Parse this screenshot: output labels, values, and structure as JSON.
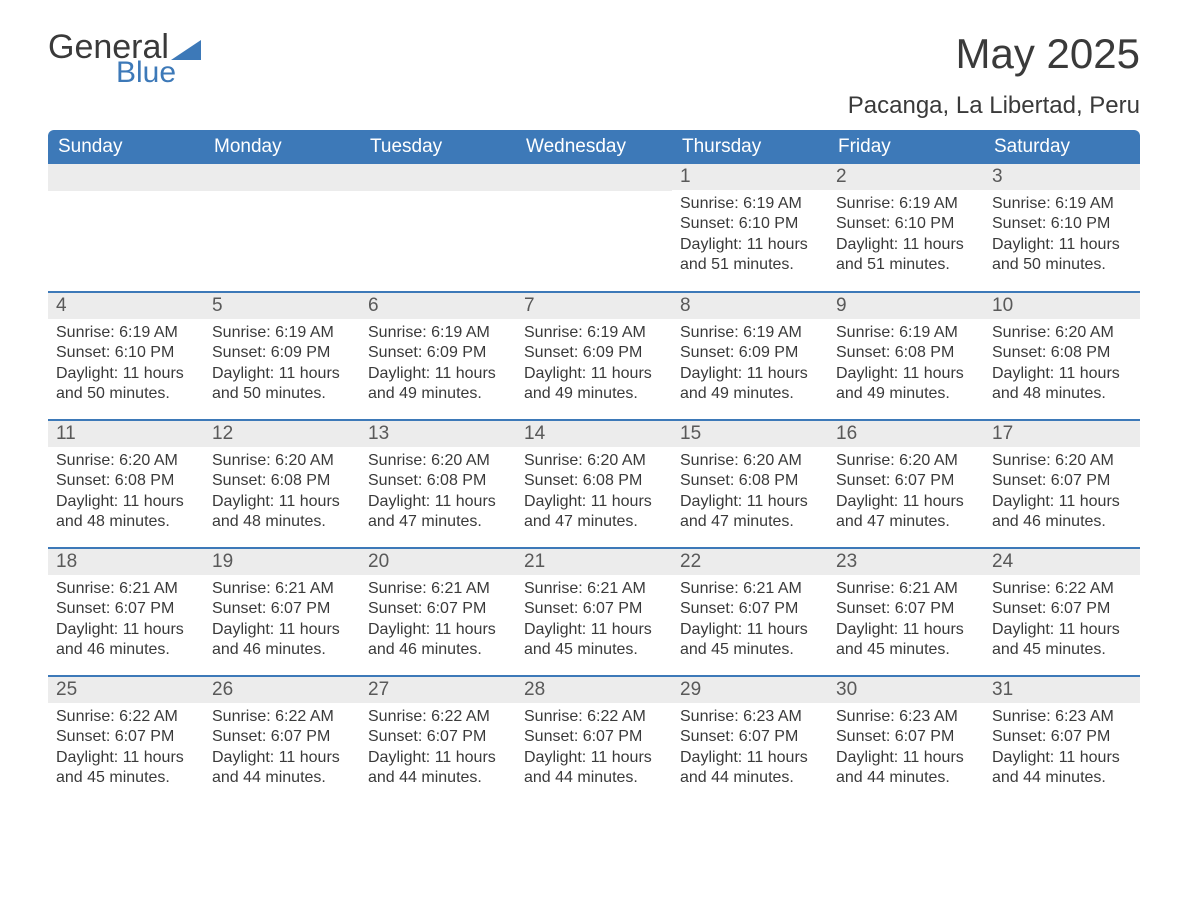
{
  "logo": {
    "text_general": "General",
    "text_blue": "Blue"
  },
  "header": {
    "title": "May 2025",
    "location": "Pacanga, La Libertad, Peru"
  },
  "colors": {
    "header_bg": "#3d79b8",
    "header_fg": "#ffffff",
    "daynum_bg": "#ececec",
    "daynum_fg": "#595959",
    "body_text": "#3a3a3a",
    "row_border": "#3d79b8",
    "logo_blue": "#3d79b8"
  },
  "weekdays": [
    "Sunday",
    "Monday",
    "Tuesday",
    "Wednesday",
    "Thursday",
    "Friday",
    "Saturday"
  ],
  "weeks": [
    [
      null,
      null,
      null,
      null,
      {
        "n": "1",
        "sunrise": "6:19 AM",
        "sunset": "6:10 PM",
        "dl1": "Daylight: 11 hours",
        "dl2": "and 51 minutes."
      },
      {
        "n": "2",
        "sunrise": "6:19 AM",
        "sunset": "6:10 PM",
        "dl1": "Daylight: 11 hours",
        "dl2": "and 51 minutes."
      },
      {
        "n": "3",
        "sunrise": "6:19 AM",
        "sunset": "6:10 PM",
        "dl1": "Daylight: 11 hours",
        "dl2": "and 50 minutes."
      }
    ],
    [
      {
        "n": "4",
        "sunrise": "6:19 AM",
        "sunset": "6:10 PM",
        "dl1": "Daylight: 11 hours",
        "dl2": "and 50 minutes."
      },
      {
        "n": "5",
        "sunrise": "6:19 AM",
        "sunset": "6:09 PM",
        "dl1": "Daylight: 11 hours",
        "dl2": "and 50 minutes."
      },
      {
        "n": "6",
        "sunrise": "6:19 AM",
        "sunset": "6:09 PM",
        "dl1": "Daylight: 11 hours",
        "dl2": "and 49 minutes."
      },
      {
        "n": "7",
        "sunrise": "6:19 AM",
        "sunset": "6:09 PM",
        "dl1": "Daylight: 11 hours",
        "dl2": "and 49 minutes."
      },
      {
        "n": "8",
        "sunrise": "6:19 AM",
        "sunset": "6:09 PM",
        "dl1": "Daylight: 11 hours",
        "dl2": "and 49 minutes."
      },
      {
        "n": "9",
        "sunrise": "6:19 AM",
        "sunset": "6:08 PM",
        "dl1": "Daylight: 11 hours",
        "dl2": "and 49 minutes."
      },
      {
        "n": "10",
        "sunrise": "6:20 AM",
        "sunset": "6:08 PM",
        "dl1": "Daylight: 11 hours",
        "dl2": "and 48 minutes."
      }
    ],
    [
      {
        "n": "11",
        "sunrise": "6:20 AM",
        "sunset": "6:08 PM",
        "dl1": "Daylight: 11 hours",
        "dl2": "and 48 minutes."
      },
      {
        "n": "12",
        "sunrise": "6:20 AM",
        "sunset": "6:08 PM",
        "dl1": "Daylight: 11 hours",
        "dl2": "and 48 minutes."
      },
      {
        "n": "13",
        "sunrise": "6:20 AM",
        "sunset": "6:08 PM",
        "dl1": "Daylight: 11 hours",
        "dl2": "and 47 minutes."
      },
      {
        "n": "14",
        "sunrise": "6:20 AM",
        "sunset": "6:08 PM",
        "dl1": "Daylight: 11 hours",
        "dl2": "and 47 minutes."
      },
      {
        "n": "15",
        "sunrise": "6:20 AM",
        "sunset": "6:08 PM",
        "dl1": "Daylight: 11 hours",
        "dl2": "and 47 minutes."
      },
      {
        "n": "16",
        "sunrise": "6:20 AM",
        "sunset": "6:07 PM",
        "dl1": "Daylight: 11 hours",
        "dl2": "and 47 minutes."
      },
      {
        "n": "17",
        "sunrise": "6:20 AM",
        "sunset": "6:07 PM",
        "dl1": "Daylight: 11 hours",
        "dl2": "and 46 minutes."
      }
    ],
    [
      {
        "n": "18",
        "sunrise": "6:21 AM",
        "sunset": "6:07 PM",
        "dl1": "Daylight: 11 hours",
        "dl2": "and 46 minutes."
      },
      {
        "n": "19",
        "sunrise": "6:21 AM",
        "sunset": "6:07 PM",
        "dl1": "Daylight: 11 hours",
        "dl2": "and 46 minutes."
      },
      {
        "n": "20",
        "sunrise": "6:21 AM",
        "sunset": "6:07 PM",
        "dl1": "Daylight: 11 hours",
        "dl2": "and 46 minutes."
      },
      {
        "n": "21",
        "sunrise": "6:21 AM",
        "sunset": "6:07 PM",
        "dl1": "Daylight: 11 hours",
        "dl2": "and 45 minutes."
      },
      {
        "n": "22",
        "sunrise": "6:21 AM",
        "sunset": "6:07 PM",
        "dl1": "Daylight: 11 hours",
        "dl2": "and 45 minutes."
      },
      {
        "n": "23",
        "sunrise": "6:21 AM",
        "sunset": "6:07 PM",
        "dl1": "Daylight: 11 hours",
        "dl2": "and 45 minutes."
      },
      {
        "n": "24",
        "sunrise": "6:22 AM",
        "sunset": "6:07 PM",
        "dl1": "Daylight: 11 hours",
        "dl2": "and 45 minutes."
      }
    ],
    [
      {
        "n": "25",
        "sunrise": "6:22 AM",
        "sunset": "6:07 PM",
        "dl1": "Daylight: 11 hours",
        "dl2": "and 45 minutes."
      },
      {
        "n": "26",
        "sunrise": "6:22 AM",
        "sunset": "6:07 PM",
        "dl1": "Daylight: 11 hours",
        "dl2": "and 44 minutes."
      },
      {
        "n": "27",
        "sunrise": "6:22 AM",
        "sunset": "6:07 PM",
        "dl1": "Daylight: 11 hours",
        "dl2": "and 44 minutes."
      },
      {
        "n": "28",
        "sunrise": "6:22 AM",
        "sunset": "6:07 PM",
        "dl1": "Daylight: 11 hours",
        "dl2": "and 44 minutes."
      },
      {
        "n": "29",
        "sunrise": "6:23 AM",
        "sunset": "6:07 PM",
        "dl1": "Daylight: 11 hours",
        "dl2": "and 44 minutes."
      },
      {
        "n": "30",
        "sunrise": "6:23 AM",
        "sunset": "6:07 PM",
        "dl1": "Daylight: 11 hours",
        "dl2": "and 44 minutes."
      },
      {
        "n": "31",
        "sunrise": "6:23 AM",
        "sunset": "6:07 PM",
        "dl1": "Daylight: 11 hours",
        "dl2": "and 44 minutes."
      }
    ]
  ],
  "labels": {
    "sunrise_prefix": "Sunrise: ",
    "sunset_prefix": "Sunset: "
  }
}
